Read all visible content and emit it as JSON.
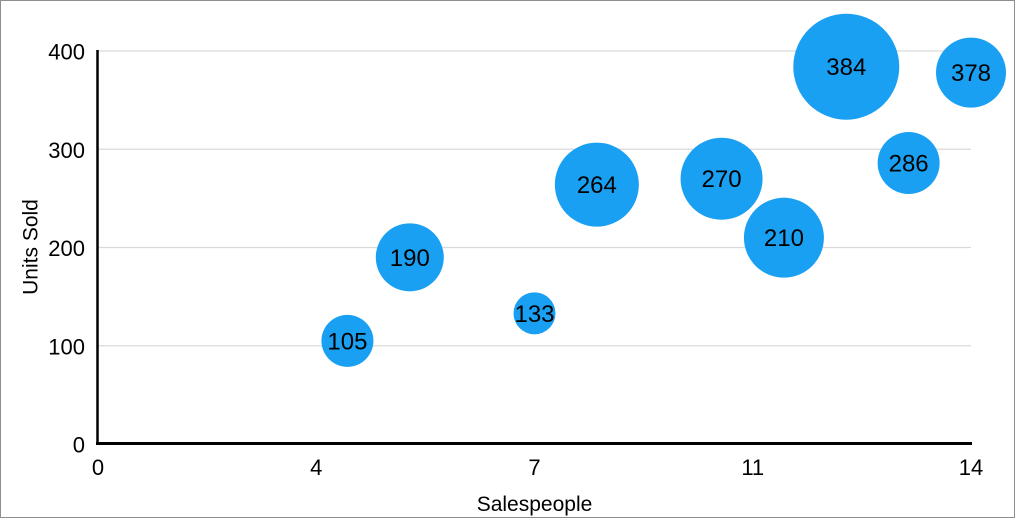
{
  "figure": {
    "background": "#ffffff",
    "border_color": "#8e8e8e"
  },
  "chart_data": {
    "type": "scatter",
    "subtype": "bubble",
    "title": "",
    "xlabel": "Salespeople",
    "ylabel": "Units Sold",
    "xlim": [
      0,
      14
    ],
    "ylim": [
      0,
      400
    ],
    "x_tick_labels": [
      "0",
      "4",
      "7",
      "11",
      "14"
    ],
    "y_tick_labels": [
      "0",
      "100",
      "200",
      "300",
      "400"
    ],
    "grid": "horizontal-gridlines-on",
    "legend": "none",
    "points": [
      {
        "x": 4,
        "y": 105,
        "label": "105",
        "radius_px": 26
      },
      {
        "x": 5,
        "y": 190,
        "label": "190",
        "radius_px": 34
      },
      {
        "x": 7,
        "y": 133,
        "label": "133",
        "radius_px": 21
      },
      {
        "x": 8,
        "y": 264,
        "label": "264",
        "radius_px": 42
      },
      {
        "x": 10,
        "y": 270,
        "label": "270",
        "radius_px": 41
      },
      {
        "x": 11,
        "y": 210,
        "label": "210",
        "radius_px": 40
      },
      {
        "x": 12,
        "y": 384,
        "label": "384",
        "radius_px": 53
      },
      {
        "x": 13,
        "y": 286,
        "label": "286",
        "radius_px": 31
      },
      {
        "x": 14,
        "y": 378,
        "label": "378",
        "radius_px": 35
      }
    ],
    "colors": {
      "bubble_fill": "#1AA0F2",
      "bubble_label": "#000000",
      "gridline": "#d9d9d9",
      "axis_line": "#000000",
      "tick_label": "#000000",
      "axis_title": "#000000"
    }
  }
}
